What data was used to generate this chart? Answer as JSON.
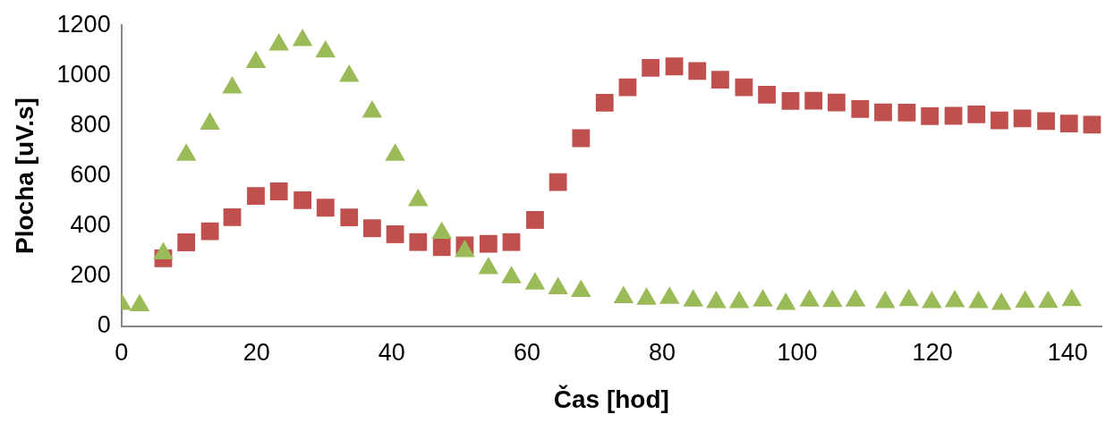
{
  "chart_data": {
    "type": "scatter",
    "xlabel": "Čas [hod]",
    "ylabel": "Plocha [uV.s]",
    "xlim": [
      0,
      145
    ],
    "xticks": [
      0,
      20,
      40,
      60,
      80,
      100,
      120,
      140
    ],
    "ylim": [
      0,
      1200
    ],
    "yticks": [
      0,
      200,
      400,
      600,
      800,
      1000,
      1200
    ],
    "grid": false,
    "legend": false,
    "series": [
      {
        "color": "#c0504d",
        "marker": "square",
        "x": [
          6.2,
          9.6,
          13.1,
          16.4,
          19.9,
          23.3,
          26.8,
          30.2,
          33.7,
          37.1,
          40.5,
          43.9,
          47.4,
          50.8,
          54.3,
          57.7,
          61.2,
          64.6,
          68.0,
          71.5,
          74.9,
          78.3,
          81.8,
          85.2,
          88.6,
          92.1,
          95.5,
          99.0,
          102.4,
          105.8,
          109.3,
          112.7,
          116.2,
          119.6,
          123.1,
          126.5,
          129.9,
          133.3,
          136.8,
          140.2,
          143.6
        ],
        "values": [
          271,
          335,
          379,
          435,
          520,
          538,
          503,
          473,
          434,
          391,
          367,
          336,
          316,
          323,
          329,
          336,
          424,
          575,
          750,
          891,
          953,
          1030,
          1036,
          1018,
          983,
          953,
          923,
          898,
          899,
          892,
          866,
          853,
          852,
          838,
          839,
          845,
          821,
          829,
          818,
          808,
          804
        ]
      },
      {
        "color": "#9bbb59",
        "marker": "triangle",
        "x": [
          0,
          2.7,
          6.2,
          9.6,
          13.1,
          16.4,
          19.9,
          23.3,
          26.8,
          30.2,
          33.7,
          37.1,
          40.5,
          43.9,
          47.4,
          50.8,
          54.3,
          57.7,
          61.2,
          64.6,
          68.0,
          74.3,
          77.7,
          81.1,
          84.6,
          88.0,
          91.4,
          94.9,
          98.3,
          101.8,
          105.2,
          108.6,
          113.0,
          116.5,
          119.9,
          123.3,
          126.8,
          130.2,
          133.7,
          137.1,
          140.6
        ],
        "values": [
          89,
          84,
          290,
          683,
          807,
          951,
          1053,
          1122,
          1140,
          1095,
          998,
          855,
          683,
          502,
          372,
          299,
          232,
          195,
          170,
          151,
          141,
          116,
          110,
          113,
          102,
          96,
          96,
          102,
          89,
          102,
          101,
          102,
          96,
          104,
          96,
          100,
          96,
          89,
          98,
          97,
          104
        ]
      }
    ]
  }
}
